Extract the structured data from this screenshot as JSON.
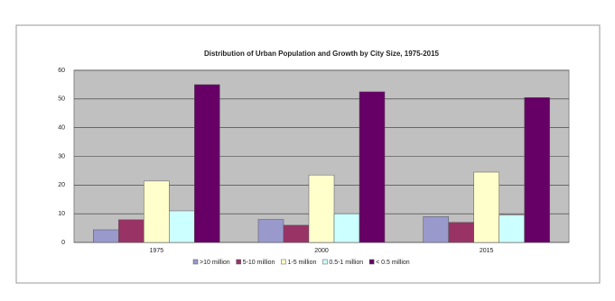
{
  "chart_data": {
    "type": "bar",
    "title": "Distribution of Urban Population and Growth by City Size, 1975-2015",
    "categories": [
      "1975",
      "2000",
      "2015"
    ],
    "series": [
      {
        "name": ">10 million",
        "color": "#9999cc",
        "values": [
          4.4,
          8,
          9
        ]
      },
      {
        "name": "5-10 million",
        "color": "#993366",
        "values": [
          7.9,
          6,
          7
        ]
      },
      {
        "name": "1-5 million",
        "color": "#ffffcc",
        "values": [
          21.4,
          23.5,
          24.5
        ]
      },
      {
        "name": "0.5-1 million",
        "color": "#ccffff",
        "values": [
          11,
          10,
          9.5
        ]
      },
      {
        "name": "< 0.5 million",
        "color": "#660066",
        "values": [
          55,
          52.5,
          50.5
        ]
      }
    ],
    "ylim": [
      0,
      60
    ],
    "yticks": [
      0,
      10,
      20,
      30,
      40,
      50,
      60
    ],
    "grid": true,
    "legend": "bottom"
  }
}
